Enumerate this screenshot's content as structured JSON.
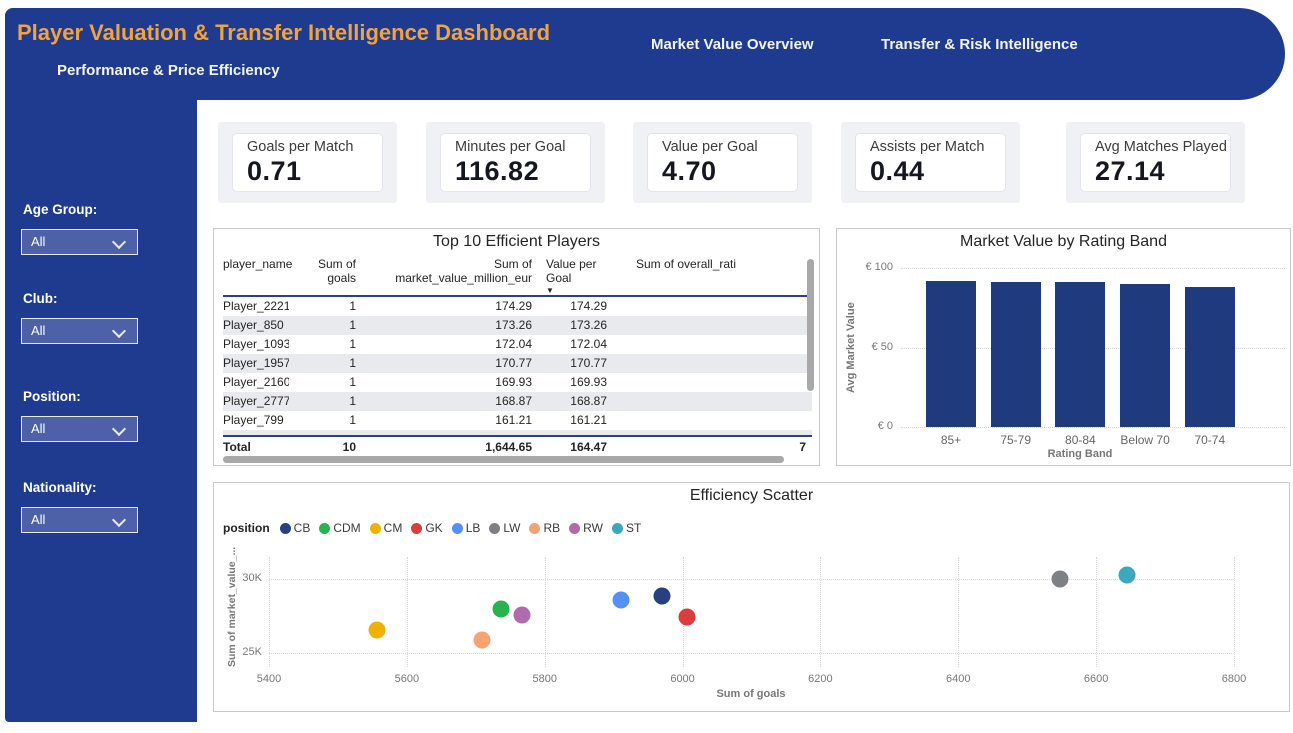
{
  "header": {
    "title": "Player Valuation & Transfer Intelligence Dashboard",
    "tabs": [
      {
        "label": "Performance & Price Efficiency"
      },
      {
        "label": "Market Value Overview"
      },
      {
        "label": "Transfer & Risk Intelligence"
      }
    ]
  },
  "filters": [
    {
      "label": "Age Group:",
      "value": "All"
    },
    {
      "label": "Club:",
      "value": "All"
    },
    {
      "label": "Position:",
      "value": "All"
    },
    {
      "label": "Nationality:",
      "value": "All"
    }
  ],
  "kpis": [
    {
      "label": "Goals per Match",
      "value": "0.71"
    },
    {
      "label": "Minutes per Goal",
      "value": "116.82"
    },
    {
      "label": "Value per Goal",
      "value": "4.70"
    },
    {
      "label": "Assists per Match",
      "value": "0.44"
    },
    {
      "label": "Avg Matches Played",
      "value": "27.14"
    }
  ],
  "table": {
    "title": "Top 10 Efficient Players",
    "columns": [
      "player_name",
      "Sum of goals",
      "Sum of market_value_million_eur",
      "Value per Goal",
      "Sum of overall_rati"
    ],
    "sorted_column_index": 3,
    "sort_direction": "desc",
    "rows": [
      [
        "Player_2221",
        "1",
        "174.29",
        "174.29",
        ""
      ],
      [
        "Player_850",
        "1",
        "173.26",
        "173.26",
        ""
      ],
      [
        "Player_1093",
        "1",
        "172.04",
        "172.04",
        ""
      ],
      [
        "Player_1957",
        "1",
        "170.77",
        "170.77",
        ""
      ],
      [
        "Player_2160",
        "1",
        "169.93",
        "169.93",
        ""
      ],
      [
        "Player_2777",
        "1",
        "168.87",
        "168.87",
        ""
      ],
      [
        "Player_799",
        "1",
        "161.21",
        "161.21",
        ""
      ]
    ],
    "total_row": [
      "Total",
      "10",
      "1,644.65",
      "164.47",
      "7"
    ]
  },
  "chart_data": [
    {
      "type": "bar",
      "title": "Market Value by Rating Band",
      "categories": [
        "85+",
        "75-79",
        "80-84",
        "Below 70",
        "70-74"
      ],
      "values": [
        92,
        91,
        91,
        90,
        88
      ],
      "xlabel": "Rating Band",
      "ylabel": "Avg Market Value",
      "ylim": [
        0,
        100
      ],
      "yticks": [
        {
          "value": 100,
          "label": "€ 100"
        },
        {
          "value": 50,
          "label": "€ 50"
        },
        {
          "value": 0,
          "label": "€ 0"
        }
      ],
      "bar_color": "#1F3B7E",
      "grid": "horizontal-dotted"
    },
    {
      "type": "scatter",
      "title": "Efficiency Scatter",
      "legend_title": "position",
      "legend_position": "top-left",
      "xlabel": "Sum of goals",
      "ylabel": "Sum of market_value_...",
      "xlim": [
        5400,
        6800
      ],
      "xticks": [
        5400,
        5600,
        5800,
        6000,
        6200,
        6400,
        6600,
        6800
      ],
      "ylim_thousands": [
        23.5,
        31.5
      ],
      "yticks": [
        {
          "value": 30,
          "label": "30K"
        },
        {
          "value": 25,
          "label": "25K"
        }
      ],
      "grid": "dotted",
      "series": [
        {
          "name": "CB",
          "color": "#26417E",
          "points": [
            {
              "x": 5970,
              "y_thousands": 28.85
            }
          ]
        },
        {
          "name": "CDM",
          "color": "#28B250",
          "points": [
            {
              "x": 5737,
              "y_thousands": 27.95
            }
          ]
        },
        {
          "name": "CM",
          "color": "#EFB104",
          "points": [
            {
              "x": 5557,
              "y_thousands": 26.55
            }
          ]
        },
        {
          "name": "GK",
          "color": "#DD3C3C",
          "points": [
            {
              "x": 6007,
              "y_thousands": 27.45
            }
          ]
        },
        {
          "name": "LB",
          "color": "#5590F7",
          "points": [
            {
              "x": 5911,
              "y_thousands": 28.6
            }
          ]
        },
        {
          "name": "LW",
          "color": "#7D8085",
          "points": [
            {
              "x": 6548,
              "y_thousands": 30.0
            }
          ]
        },
        {
          "name": "RB",
          "color": "#F9A16F",
          "points": [
            {
              "x": 5709,
              "y_thousands": 25.9
            }
          ]
        },
        {
          "name": "RW",
          "color": "#AF6BAB",
          "points": [
            {
              "x": 5767,
              "y_thousands": 27.55
            }
          ]
        },
        {
          "name": "ST",
          "color": "#3BA8BF",
          "points": [
            {
              "x": 6645,
              "y_thousands": 30.25
            }
          ]
        }
      ]
    }
  ]
}
